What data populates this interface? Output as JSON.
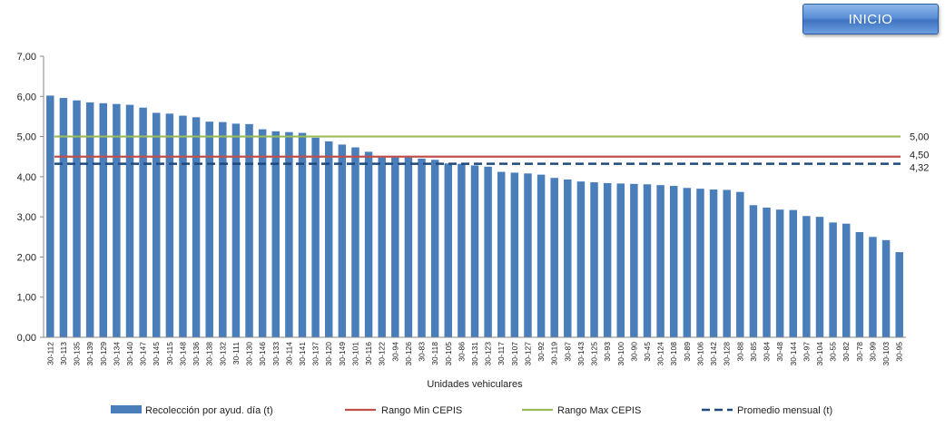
{
  "button": {
    "label": "INICIO"
  },
  "chart_data": {
    "type": "bar",
    "xlabel": "Unidades vehiculares",
    "ylabel": "",
    "ylim": [
      0,
      7
    ],
    "ytick_labels": [
      "0,00",
      "1,00",
      "2,00",
      "3,00",
      "4,00",
      "5,00",
      "6,00",
      "7,00"
    ],
    "grid": false,
    "legend_position": "bottom",
    "categories": [
      "30-112",
      "30-113",
      "30-135",
      "30-139",
      "30-129",
      "30-134",
      "30-140",
      "30-147",
      "30-145",
      "30-115",
      "30-148",
      "30-136",
      "30-138",
      "30-132",
      "30-111",
      "30-130",
      "30-146",
      "30-133",
      "30-114",
      "30-141",
      "30-137",
      "30-120",
      "30-149",
      "30-101",
      "30-116",
      "30-122",
      "30-94",
      "30-126",
      "30-83",
      "30-118",
      "30-105",
      "30-86",
      "30-131",
      "30-123",
      "30-117",
      "30-107",
      "30-127",
      "30-92",
      "30-119",
      "30-87",
      "30-143",
      "30-125",
      "30-93",
      "30-100",
      "30-90",
      "30-45",
      "30-124",
      "30-108",
      "30-89",
      "30-106",
      "30-142",
      "30-128",
      "30-88",
      "30-85",
      "30-84",
      "30-48",
      "30-144",
      "30-97",
      "30-104",
      "30-55",
      "30-82",
      "30-78",
      "30-99",
      "30-103",
      "30-95"
    ],
    "series": [
      {
        "name": "Recolección por ayud. día (t)",
        "color": "#4a7ebb",
        "values": [
          6.02,
          5.96,
          5.9,
          5.85,
          5.83,
          5.81,
          5.79,
          5.72,
          5.59,
          5.57,
          5.52,
          5.48,
          5.37,
          5.36,
          5.32,
          5.31,
          5.18,
          5.13,
          5.11,
          5.09,
          4.97,
          4.88,
          4.8,
          4.73,
          4.62,
          4.5,
          4.5,
          4.48,
          4.45,
          4.42,
          4.33,
          4.32,
          4.28,
          4.25,
          4.12,
          4.1,
          4.08,
          4.05,
          3.97,
          3.93,
          3.88,
          3.86,
          3.84,
          3.83,
          3.82,
          3.81,
          3.79,
          3.77,
          3.72,
          3.7,
          3.68,
          3.67,
          3.62,
          3.29,
          3.23,
          3.18,
          3.17,
          3.02,
          3.0,
          2.86,
          2.83,
          2.62,
          2.5,
          2.42,
          2.12
        ]
      }
    ],
    "reference_lines": [
      {
        "name": "Rango Min CEPIS",
        "value": 4.5,
        "label": "4,50",
        "color": "#c0504d",
        "style": "solid"
      },
      {
        "name": "Rango Max CEPIS",
        "value": 5.0,
        "label": "5,00",
        "color": "#9bbb59",
        "style": "solid"
      },
      {
        "name": "Promedio mensual (t)",
        "value": 4.32,
        "label": "4,32",
        "color": "#1f497d",
        "style": "dashed"
      }
    ]
  }
}
